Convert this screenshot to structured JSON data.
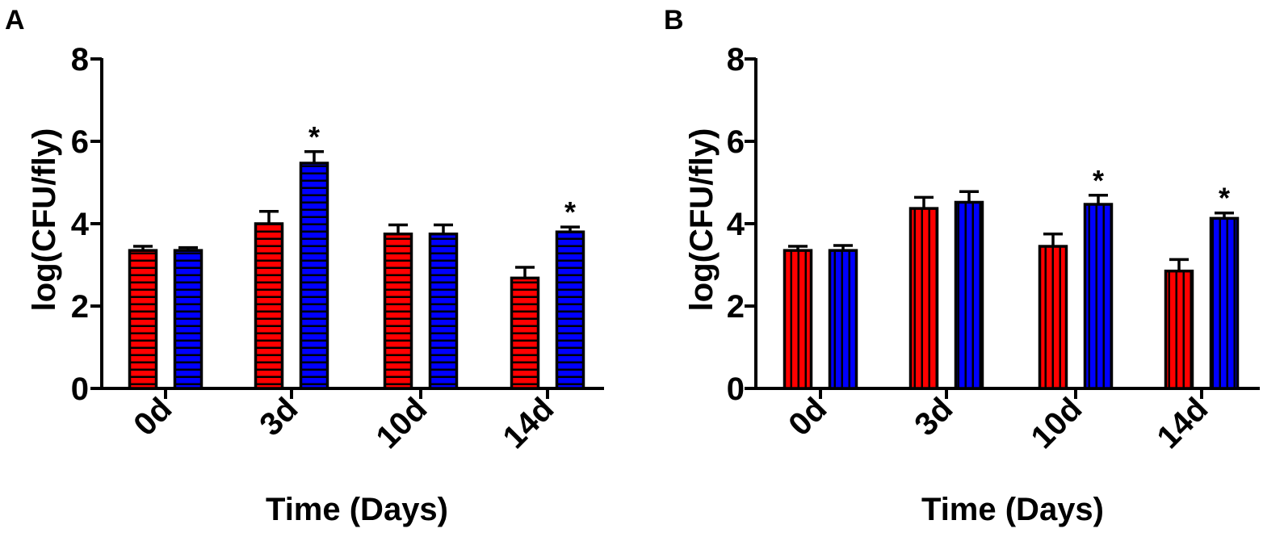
{
  "chart_data": [
    {
      "type": "bar",
      "panel": "A",
      "categories": [
        "0d",
        "3d",
        "10d",
        "14d"
      ],
      "series": [
        {
          "name": "red",
          "color": "#ff0000",
          "pattern": "horizontal-stripes",
          "values": [
            3.35,
            4.0,
            3.75,
            2.68
          ],
          "errors": [
            0.1,
            0.3,
            0.22,
            0.26
          ],
          "significant": [
            false,
            false,
            false,
            false
          ]
        },
        {
          "name": "blue",
          "color": "#0000ff",
          "pattern": "horizontal-stripes",
          "values": [
            3.35,
            5.47,
            3.75,
            3.8
          ],
          "errors": [
            0.07,
            0.28,
            0.22,
            0.12
          ],
          "significant": [
            false,
            true,
            false,
            true
          ]
        }
      ],
      "significance_marker": "*",
      "xlabel": "Time (Days)",
      "ylabel": "log(CFU/fly)",
      "ylim": [
        0,
        8
      ],
      "yticks": [
        0,
        2,
        4,
        6,
        8
      ],
      "grid": false
    },
    {
      "type": "bar",
      "panel": "B",
      "categories": [
        "0d",
        "3d",
        "10d",
        "14d"
      ],
      "series": [
        {
          "name": "red",
          "color": "#ff0000",
          "pattern": "vertical-stripes",
          "values": [
            3.35,
            4.37,
            3.45,
            2.85
          ],
          "errors": [
            0.1,
            0.27,
            0.3,
            0.28
          ],
          "significant": [
            false,
            false,
            false,
            false
          ]
        },
        {
          "name": "blue",
          "color": "#0000ff",
          "pattern": "vertical-stripes",
          "values": [
            3.35,
            4.52,
            4.47,
            4.13
          ],
          "errors": [
            0.12,
            0.26,
            0.22,
            0.13
          ],
          "significant": [
            false,
            false,
            true,
            true
          ]
        }
      ],
      "significance_marker": "*",
      "xlabel": "Time (Days)",
      "ylabel": "log(CFU/fly)",
      "ylim": [
        0,
        8
      ],
      "yticks": [
        0,
        2,
        4,
        6,
        8
      ],
      "grid": false
    }
  ]
}
